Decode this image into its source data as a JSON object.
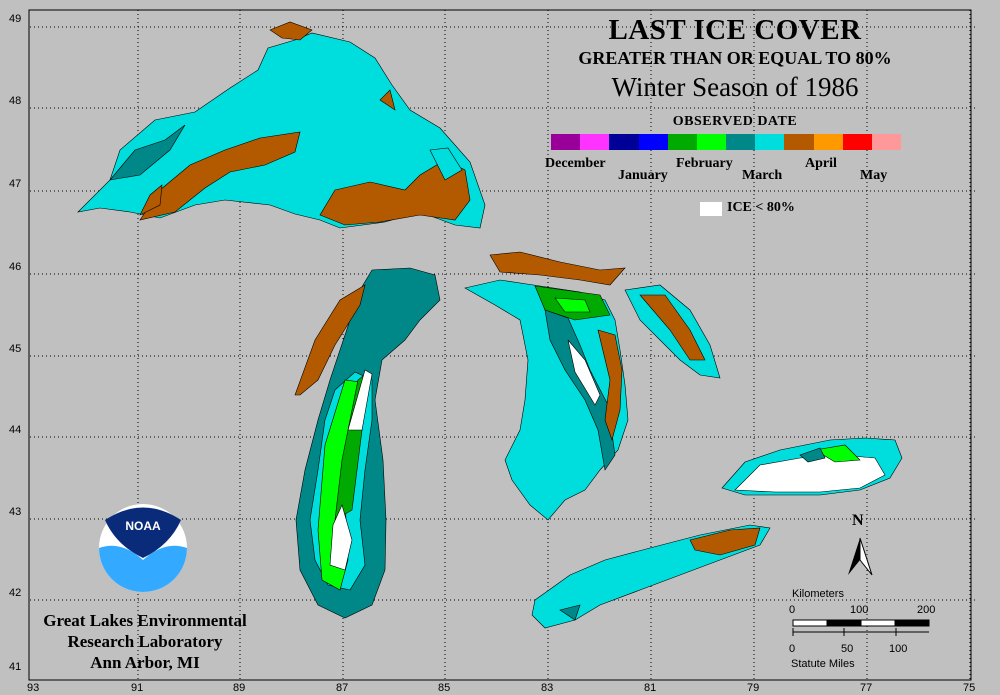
{
  "title": {
    "line1": "LAST ICE COVER",
    "line2": "GREATER THAN OR EQUAL TO 80%",
    "line3": "Winter Season of 1986",
    "legend_title": "OBSERVED DATE"
  },
  "legend": {
    "colors": [
      "#990099",
      "#ff33ff",
      "#000099",
      "#0000ff",
      "#00aa00",
      "#00ff00",
      "#008888",
      "#00dddd",
      "#b35900",
      "#ff9900",
      "#ff0000",
      "#ff9999"
    ],
    "months": [
      "December",
      "January",
      "February",
      "March",
      "April",
      "May"
    ],
    "ice_label": "ICE < 80%"
  },
  "lat_labels": [
    "49",
    "48",
    "47",
    "46",
    "45",
    "44",
    "43",
    "42",
    "41"
  ],
  "lon_labels": [
    "93",
    "91",
    "89",
    "87",
    "85",
    "83",
    "81",
    "79",
    "77",
    "75"
  ],
  "credit": [
    "Great Lakes Environmental",
    "Research Laboratory",
    "Ann Arbor, MI"
  ],
  "logo_text": "NOAA",
  "north_label": "N",
  "scale": {
    "km_title": "Kilometers",
    "km_ticks": [
      "0",
      "100",
      "200"
    ],
    "mi_title": "Statute Miles",
    "mi_ticks": [
      "0",
      "50",
      "100"
    ]
  },
  "colors": {
    "background": "#c0c0c0",
    "land_line": "#000000",
    "april": "#b35900",
    "march_dark": "#008888",
    "march_light": "#00dddd",
    "feb_dark": "#00aa00",
    "feb_light": "#00ff00",
    "ice_less_80": "#ffffff"
  }
}
